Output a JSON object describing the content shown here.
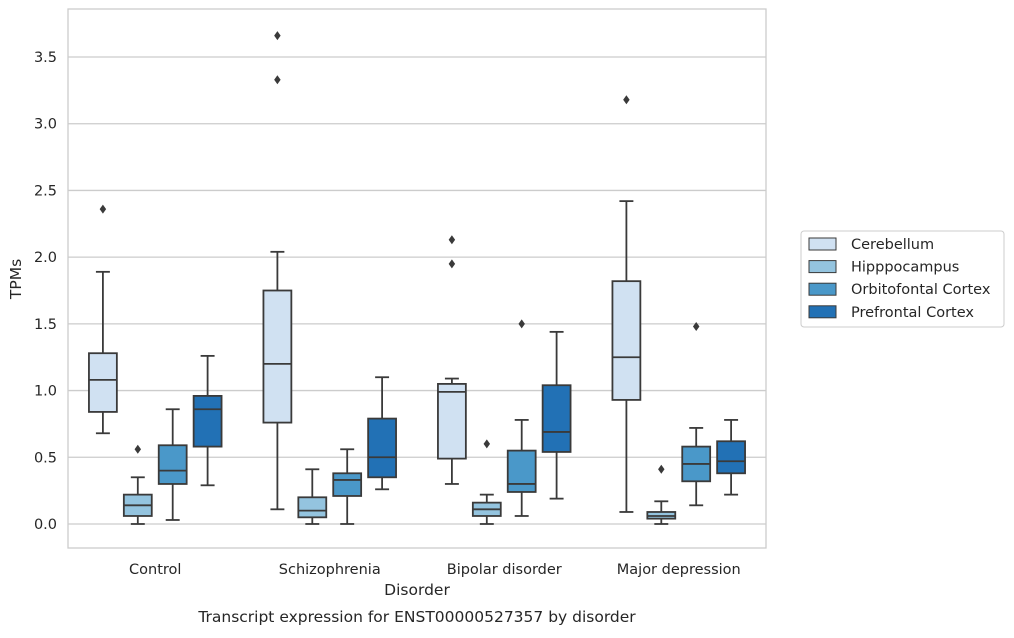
{
  "caption": "Transcript expression for ENST00000527357 by disorder",
  "chart_data": {
    "type": "box",
    "title": "",
    "xlabel": "Disorder",
    "ylabel": "TPMs",
    "ylim": [
      -0.18,
      3.86
    ],
    "yticks": [
      "0.0",
      "0.5",
      "1.0",
      "1.5",
      "2.0",
      "2.5",
      "3.0",
      "3.5"
    ],
    "grid": "horizontal",
    "legend_position": "right",
    "categories": [
      "Control",
      "Schizophrenia",
      "Bipolar disorder",
      "Major depression"
    ],
    "series": [
      {
        "name": "Cerebellum",
        "color": "#d0e1f2",
        "boxes": [
          {
            "whislo": 0.68,
            "q1": 0.84,
            "med": 1.08,
            "q3": 1.28,
            "whishi": 1.89,
            "fliers": [
              2.36
            ]
          },
          {
            "whislo": 0.11,
            "q1": 0.76,
            "med": 1.2,
            "q3": 1.75,
            "whishi": 2.04,
            "fliers": [
              3.33,
              3.66
            ]
          },
          {
            "whislo": 0.3,
            "q1": 0.49,
            "med": 0.99,
            "q3": 1.05,
            "whishi": 1.09,
            "fliers": [
              1.95,
              2.13
            ]
          },
          {
            "whislo": 0.09,
            "q1": 0.93,
            "med": 1.25,
            "q3": 1.82,
            "whishi": 2.42,
            "fliers": [
              3.18
            ]
          }
        ]
      },
      {
        "name": "Hipppocampus",
        "color": "#94c4df",
        "boxes": [
          {
            "whislo": 0.0,
            "q1": 0.06,
            "med": 0.14,
            "q3": 0.22,
            "whishi": 0.35,
            "fliers": [
              0.56
            ]
          },
          {
            "whislo": 0.0,
            "q1": 0.05,
            "med": 0.1,
            "q3": 0.2,
            "whishi": 0.41,
            "fliers": []
          },
          {
            "whislo": 0.0,
            "q1": 0.06,
            "med": 0.11,
            "q3": 0.16,
            "whishi": 0.22,
            "fliers": [
              0.6
            ]
          },
          {
            "whislo": 0.0,
            "q1": 0.04,
            "med": 0.06,
            "q3": 0.09,
            "whishi": 0.17,
            "fliers": [
              0.41
            ]
          }
        ]
      },
      {
        "name": "Orbitofontal Cortex",
        "color": "#4a98c9",
        "boxes": [
          {
            "whislo": 0.03,
            "q1": 0.3,
            "med": 0.4,
            "q3": 0.59,
            "whishi": 0.86,
            "fliers": []
          },
          {
            "whislo": 0.0,
            "q1": 0.21,
            "med": 0.33,
            "q3": 0.38,
            "whishi": 0.56,
            "fliers": []
          },
          {
            "whislo": 0.06,
            "q1": 0.24,
            "med": 0.3,
            "q3": 0.55,
            "whishi": 0.78,
            "fliers": [
              1.5
            ]
          },
          {
            "whislo": 0.14,
            "q1": 0.32,
            "med": 0.45,
            "q3": 0.58,
            "whishi": 0.72,
            "fliers": [
              1.48
            ]
          }
        ]
      },
      {
        "name": "Prefrontal Cortex",
        "color": "#2271b5",
        "boxes": [
          {
            "whislo": 0.29,
            "q1": 0.58,
            "med": 0.86,
            "q3": 0.96,
            "whishi": 1.26,
            "fliers": []
          },
          {
            "whislo": 0.26,
            "q1": 0.35,
            "med": 0.5,
            "q3": 0.79,
            "whishi": 1.1,
            "fliers": []
          },
          {
            "whislo": 0.19,
            "q1": 0.54,
            "med": 0.69,
            "q3": 1.04,
            "whishi": 1.44,
            "fliers": []
          },
          {
            "whislo": 0.22,
            "q1": 0.38,
            "med": 0.47,
            "q3": 0.62,
            "whishi": 0.78,
            "fliers": []
          }
        ]
      }
    ]
  }
}
